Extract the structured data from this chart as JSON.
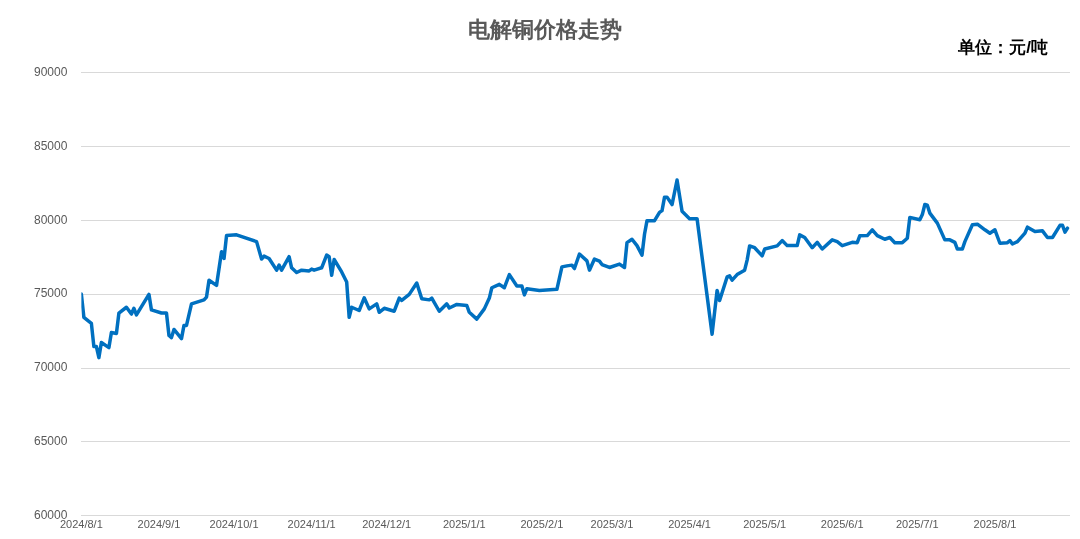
{
  "chart_data": {
    "type": "line",
    "title": "电解铜价格走势",
    "annotations": [
      "单位：元/吨"
    ],
    "x": [
      "2024-08-01",
      "2024-08-02",
      "2024-08-05",
      "2024-08-06",
      "2024-08-07",
      "2024-08-08",
      "2024-08-09",
      "2024-08-12",
      "2024-08-13",
      "2024-08-15",
      "2024-08-16",
      "2024-08-19",
      "2024-08-21",
      "2024-08-22",
      "2024-08-23",
      "2024-08-28",
      "2024-08-29",
      "2024-09-02",
      "2024-09-04",
      "2024-09-05",
      "2024-09-06",
      "2024-09-07",
      "2024-09-10",
      "2024-09-11",
      "2024-09-12",
      "2024-09-14",
      "2024-09-19",
      "2024-09-20",
      "2024-09-21",
      "2024-09-24",
      "2024-09-26",
      "2024-09-27",
      "2024-09-28",
      "2024-10-02",
      "2024-10-10",
      "2024-10-12",
      "2024-10-13",
      "2024-10-15",
      "2024-10-18",
      "2024-10-19",
      "2024-10-20",
      "2024-10-23",
      "2024-10-24",
      "2024-10-26",
      "2024-10-28",
      "2024-10-31",
      "2024-11-01",
      "2024-11-02",
      "2024-11-05",
      "2024-11-07",
      "2024-11-08",
      "2024-11-09",
      "2024-11-10",
      "2024-11-13",
      "2024-11-15",
      "2024-11-16",
      "2024-11-17",
      "2024-11-20",
      "2024-11-22",
      "2024-11-24",
      "2024-11-27",
      "2024-11-28",
      "2024-11-30",
      "2024-12-04",
      "2024-12-06",
      "2024-12-07",
      "2024-12-10",
      "2024-12-13",
      "2024-12-15",
      "2024-12-18",
      "2024-12-19",
      "2024-12-22",
      "2024-12-25",
      "2024-12-26",
      "2024-12-29",
      "2025-01-02",
      "2025-01-03",
      "2025-01-06",
      "2025-01-09",
      "2025-01-11",
      "2025-01-12",
      "2025-01-15",
      "2025-01-17",
      "2025-01-19",
      "2025-01-22",
      "2025-01-24",
      "2025-01-25",
      "2025-01-26",
      "2025-01-31",
      "2025-02-07",
      "2025-02-09",
      "2025-02-11",
      "2025-02-13",
      "2025-02-14",
      "2025-02-16",
      "2025-02-19",
      "2025-02-20",
      "2025-02-22",
      "2025-02-24",
      "2025-02-25",
      "2025-02-28",
      "2025-03-04",
      "2025-03-06",
      "2025-03-07",
      "2025-03-09",
      "2025-03-11",
      "2025-03-13",
      "2025-03-14",
      "2025-03-15",
      "2025-03-18",
      "2025-03-20",
      "2025-03-21",
      "2025-03-22",
      "2025-03-23",
      "2025-03-25",
      "2025-03-27",
      "2025-03-29",
      "2025-04-01",
      "2025-04-04",
      "2025-04-10",
      "2025-04-12",
      "2025-04-13",
      "2025-04-16",
      "2025-04-17",
      "2025-04-18",
      "2025-04-20",
      "2025-04-23",
      "2025-04-24",
      "2025-04-25",
      "2025-04-27",
      "2025-04-30",
      "2025-05-01",
      "2025-05-06",
      "2025-05-08",
      "2025-05-10",
      "2025-05-14",
      "2025-05-15",
      "2025-05-17",
      "2025-05-20",
      "2025-05-22",
      "2025-05-24",
      "2025-05-28",
      "2025-05-30",
      "2025-06-01",
      "2025-06-05",
      "2025-06-07",
      "2025-06-08",
      "2025-06-11",
      "2025-06-13",
      "2025-06-15",
      "2025-06-18",
      "2025-06-20",
      "2025-06-22",
      "2025-06-25",
      "2025-06-27",
      "2025-06-28",
      "2025-07-02",
      "2025-07-03",
      "2025-07-04",
      "2025-07-05",
      "2025-07-06",
      "2025-07-09",
      "2025-07-12",
      "2025-07-14",
      "2025-07-16",
      "2025-07-17",
      "2025-07-19",
      "2025-07-20",
      "2025-07-23",
      "2025-07-25",
      "2025-07-28",
      "2025-07-30",
      "2025-08-01",
      "2025-08-03",
      "2025-08-06",
      "2025-08-07",
      "2025-08-08",
      "2025-08-10",
      "2025-08-13",
      "2025-08-14",
      "2025-08-17",
      "2025-08-20",
      "2025-08-22",
      "2025-08-24",
      "2025-08-27",
      "2025-08-28",
      "2025-08-29",
      "2025-08-30"
    ],
    "series": [
      {
        "color": "#0070c0",
        "values": [
          75000,
          73430,
          73020,
          71450,
          71450,
          70700,
          71720,
          71380,
          72400,
          72340,
          73720,
          74110,
          73650,
          74040,
          73590,
          74980,
          73930,
          73720,
          73720,
          72200,
          72060,
          72610,
          71990,
          72880,
          72880,
          74340,
          74610,
          74800,
          75940,
          75590,
          77870,
          77410,
          78960,
          79010,
          78550,
          77370,
          77570,
          77410,
          76620,
          76960,
          76620,
          77530,
          76780,
          76460,
          76620,
          76570,
          76690,
          76620,
          76780,
          77640,
          77530,
          76280,
          77340,
          76500,
          75820,
          73430,
          74110,
          73890,
          74750,
          74000,
          74340,
          73770,
          74040,
          73840,
          74730,
          74570,
          74980,
          75750,
          74680,
          74610,
          74730,
          73840,
          74340,
          74060,
          74300,
          74230,
          73770,
          73310,
          74000,
          74730,
          75430,
          75660,
          75430,
          76320,
          75550,
          75550,
          74950,
          75360,
          75250,
          75320,
          76840,
          76910,
          76960,
          76730,
          77710,
          77250,
          76620,
          77370,
          77230,
          77000,
          76800,
          77030,
          76800,
          78480,
          78710,
          78280,
          77640,
          79050,
          79970,
          79970,
          80530,
          80650,
          81560,
          81560,
          81060,
          82720,
          80600,
          80100,
          80100,
          72290,
          75250,
          74570,
          76160,
          76230,
          75940,
          76320,
          76620,
          77300,
          78260,
          78140,
          77590,
          78050,
          78260,
          78620,
          78280,
          78280,
          79010,
          78830,
          78140,
          78500,
          78050,
          78670,
          78550,
          78280,
          78500,
          78480,
          78940,
          78960,
          79350,
          78960,
          78710,
          78830,
          78480,
          78480,
          78780,
          80190,
          80030,
          80380,
          81060,
          81010,
          80480,
          79800,
          78670,
          78670,
          78500,
          78050,
          78050,
          78550,
          79690,
          79730,
          79350,
          79120,
          79350,
          78440,
          78480,
          78620,
          78390,
          78550,
          79120,
          79530,
          79230,
          79280,
          78830,
          78830,
          79650,
          79650,
          79190,
          79460
        ]
      }
    ],
    "xlim": [
      "2024-08-01",
      "2025-08-31"
    ],
    "xticks": [
      {
        "value": "2024-08-01",
        "label": "2024/8/1"
      },
      {
        "value": "2024-09-01",
        "label": "2024/9/1"
      },
      {
        "value": "2024-10-01",
        "label": "2024/10/1"
      },
      {
        "value": "2024-11-01",
        "label": "2024/11/1"
      },
      {
        "value": "2024-12-01",
        "label": "2024/12/1"
      },
      {
        "value": "2025-01-01",
        "label": "2025/1/1"
      },
      {
        "value": "2025-02-01",
        "label": "2025/2/1"
      },
      {
        "value": "2025-03-01",
        "label": "2025/3/1"
      },
      {
        "value": "2025-04-01",
        "label": "2025/4/1"
      },
      {
        "value": "2025-05-01",
        "label": "2025/5/1"
      },
      {
        "value": "2025-06-01",
        "label": "2025/6/1"
      },
      {
        "value": "2025-07-01",
        "label": "2025/7/1"
      },
      {
        "value": "2025-08-01",
        "label": "2025/8/1"
      }
    ],
    "ylim": [
      60000,
      90000
    ],
    "yticks": [
      60000,
      65000,
      70000,
      75000,
      80000,
      85000,
      90000
    ],
    "grid": "y",
    "legend": false,
    "marker": "none",
    "line_style": "solid"
  }
}
